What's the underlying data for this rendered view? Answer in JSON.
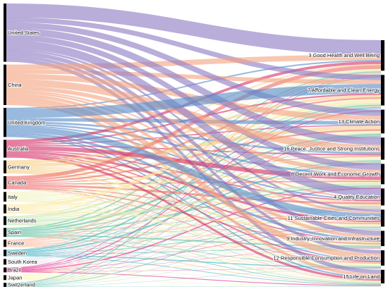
{
  "diagram": {
    "type": "sankey",
    "sources": [
      {
        "id": "us",
        "label": "United States",
        "color": "#8e7cc3",
        "weight": 72
      },
      {
        "id": "cn",
        "label": "China",
        "color": "#f4a582",
        "weight": 50
      },
      {
        "id": "uk",
        "label": "United Kingdom",
        "color": "#5b8ec9",
        "weight": 36
      },
      {
        "id": "au",
        "label": "Australia",
        "color": "#d6336c",
        "weight": 22
      },
      {
        "id": "de",
        "label": "Germany",
        "color": "#f7d08a",
        "weight": 16
      },
      {
        "id": "ca",
        "label": "Canada",
        "color": "#ef6f6c",
        "weight": 16
      },
      {
        "id": "it",
        "label": "Italy",
        "color": "#f2f2c0",
        "weight": 12
      },
      {
        "id": "in",
        "label": "India",
        "color": "#fbeaa5",
        "weight": 11
      },
      {
        "id": "nl",
        "label": "Netherlands",
        "color": "#c7e9b4",
        "weight": 11
      },
      {
        "id": "es",
        "label": "Spain",
        "color": "#66c2a4",
        "weight": 11
      },
      {
        "id": "fr",
        "label": "France",
        "color": "#fcbba1",
        "weight": 9
      },
      {
        "id": "se",
        "label": "Sweden",
        "color": "#41b6c4",
        "weight": 8
      },
      {
        "id": "kr",
        "label": "South Korea",
        "color": "#e7e1ef",
        "weight": 7
      },
      {
        "id": "br",
        "label": "Brazil",
        "color": "#e7298a",
        "weight": 6
      },
      {
        "id": "jp",
        "label": "Japan",
        "color": "#fdf5b8",
        "weight": 6
      },
      {
        "id": "ch",
        "label": "Switzerland",
        "color": "#74c7b8",
        "weight": 5
      }
    ],
    "targets": [
      {
        "id": "sdg3",
        "label": "3 Good Health and Well Being",
        "weight": 36
      },
      {
        "id": "sdg7",
        "label": "7 Affordable and Clean Energy",
        "weight": 36
      },
      {
        "id": "sdg13",
        "label": "13 Climate Action",
        "weight": 28
      },
      {
        "id": "sdg16",
        "label": "16 Peace, Justice and Strong Institutions",
        "weight": 26
      },
      {
        "id": "sdg8",
        "label": "8 Decent Work and Economic Growth",
        "weight": 24
      },
      {
        "id": "sdg4",
        "label": "4 Quality Education",
        "weight": 20
      },
      {
        "id": "sdg11",
        "label": "11 Sustainable Cities and Communities",
        "weight": 20
      },
      {
        "id": "sdg9",
        "label": "9 Industry, Innovation and Infrastructure",
        "weight": 18
      },
      {
        "id": "sdg12",
        "label": "12 Responsible Consumption and Production",
        "weight": 18
      },
      {
        "id": "sdg15",
        "label": "15 Life on Land",
        "weight": 16
      }
    ],
    "node_color": "#000000"
  }
}
